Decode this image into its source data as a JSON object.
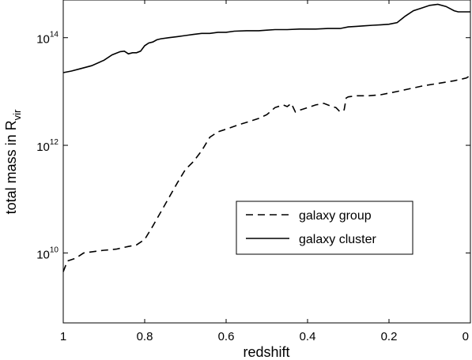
{
  "chart_data": {
    "type": "line",
    "xlabel": "redshift",
    "ylabel": "total mass in R",
    "ylabel_subscript": "vir",
    "x_reversed": true,
    "y_scale": "log",
    "xlim": [
      1,
      0
    ],
    "ylim_log10": [
      8.7,
      14.7
    ],
    "x_ticks": [
      {
        "value": 1,
        "label": "1"
      },
      {
        "value": 0.8,
        "label": "0.8"
      },
      {
        "value": 0.6,
        "label": "0.6"
      },
      {
        "value": 0.4,
        "label": "0.4"
      },
      {
        "value": 0.2,
        "label": "0.2"
      },
      {
        "value": 0,
        "label": "0"
      }
    ],
    "y_ticks": [
      {
        "log10": 10,
        "base": "10",
        "exp": "10"
      },
      {
        "log10": 12,
        "base": "10",
        "exp": "12"
      },
      {
        "log10": 14,
        "base": "10",
        "exp": "14"
      }
    ],
    "legend_position": "lower-right",
    "series": [
      {
        "name": "galaxy group",
        "dash": "dashed",
        "points_log10": [
          [
            1.0,
            9.65
          ],
          [
            0.99,
            9.85
          ],
          [
            0.97,
            9.9
          ],
          [
            0.95,
            10.0
          ],
          [
            0.92,
            10.03
          ],
          [
            0.9,
            10.05
          ],
          [
            0.87,
            10.07
          ],
          [
            0.84,
            10.12
          ],
          [
            0.82,
            10.15
          ],
          [
            0.8,
            10.25
          ],
          [
            0.78,
            10.5
          ],
          [
            0.75,
            10.9
          ],
          [
            0.72,
            11.3
          ],
          [
            0.7,
            11.55
          ],
          [
            0.68,
            11.7
          ],
          [
            0.66,
            11.9
          ],
          [
            0.64,
            12.15
          ],
          [
            0.62,
            12.25
          ],
          [
            0.6,
            12.3
          ],
          [
            0.57,
            12.38
          ],
          [
            0.54,
            12.45
          ],
          [
            0.52,
            12.5
          ],
          [
            0.5,
            12.57
          ],
          [
            0.48,
            12.7
          ],
          [
            0.46,
            12.75
          ],
          [
            0.45,
            12.72
          ],
          [
            0.44,
            12.78
          ],
          [
            0.43,
            12.62
          ],
          [
            0.42,
            12.65
          ],
          [
            0.4,
            12.7
          ],
          [
            0.38,
            12.75
          ],
          [
            0.36,
            12.78
          ],
          [
            0.34,
            12.72
          ],
          [
            0.33,
            12.7
          ],
          [
            0.32,
            12.62
          ],
          [
            0.31,
            12.66
          ],
          [
            0.305,
            12.88
          ],
          [
            0.3,
            12.9
          ],
          [
            0.28,
            12.92
          ],
          [
            0.25,
            12.92
          ],
          [
            0.22,
            12.94
          ],
          [
            0.18,
            13.0
          ],
          [
            0.15,
            13.05
          ],
          [
            0.12,
            13.1
          ],
          [
            0.08,
            13.15
          ],
          [
            0.04,
            13.2
          ],
          [
            0.01,
            13.25
          ],
          [
            0.0,
            13.3
          ]
        ]
      },
      {
        "name": "galaxy cluster",
        "dash": "solid",
        "points_log10": [
          [
            1.0,
            13.35
          ],
          [
            0.98,
            13.38
          ],
          [
            0.96,
            13.42
          ],
          [
            0.93,
            13.48
          ],
          [
            0.9,
            13.58
          ],
          [
            0.88,
            13.68
          ],
          [
            0.86,
            13.74
          ],
          [
            0.85,
            13.75
          ],
          [
            0.84,
            13.7
          ],
          [
            0.83,
            13.72
          ],
          [
            0.82,
            13.72
          ],
          [
            0.81,
            13.75
          ],
          [
            0.8,
            13.85
          ],
          [
            0.79,
            13.9
          ],
          [
            0.78,
            13.92
          ],
          [
            0.77,
            13.96
          ],
          [
            0.76,
            13.98
          ],
          [
            0.74,
            14.0
          ],
          [
            0.72,
            14.02
          ],
          [
            0.7,
            14.04
          ],
          [
            0.68,
            14.06
          ],
          [
            0.66,
            14.08
          ],
          [
            0.64,
            14.08
          ],
          [
            0.62,
            14.1
          ],
          [
            0.6,
            14.1
          ],
          [
            0.58,
            14.12
          ],
          [
            0.55,
            14.13
          ],
          [
            0.52,
            14.13
          ],
          [
            0.5,
            14.14
          ],
          [
            0.48,
            14.15
          ],
          [
            0.45,
            14.15
          ],
          [
            0.42,
            14.16
          ],
          [
            0.4,
            14.16
          ],
          [
            0.38,
            14.16
          ],
          [
            0.35,
            14.17
          ],
          [
            0.32,
            14.17
          ],
          [
            0.3,
            14.2
          ],
          [
            0.28,
            14.21
          ],
          [
            0.26,
            14.22
          ],
          [
            0.24,
            14.23
          ],
          [
            0.22,
            14.24
          ],
          [
            0.2,
            14.25
          ],
          [
            0.18,
            14.28
          ],
          [
            0.16,
            14.4
          ],
          [
            0.14,
            14.5
          ],
          [
            0.12,
            14.55
          ],
          [
            0.1,
            14.6
          ],
          [
            0.08,
            14.62
          ],
          [
            0.06,
            14.58
          ],
          [
            0.04,
            14.5
          ],
          [
            0.03,
            14.48
          ],
          [
            0.0,
            14.48
          ]
        ]
      }
    ]
  }
}
